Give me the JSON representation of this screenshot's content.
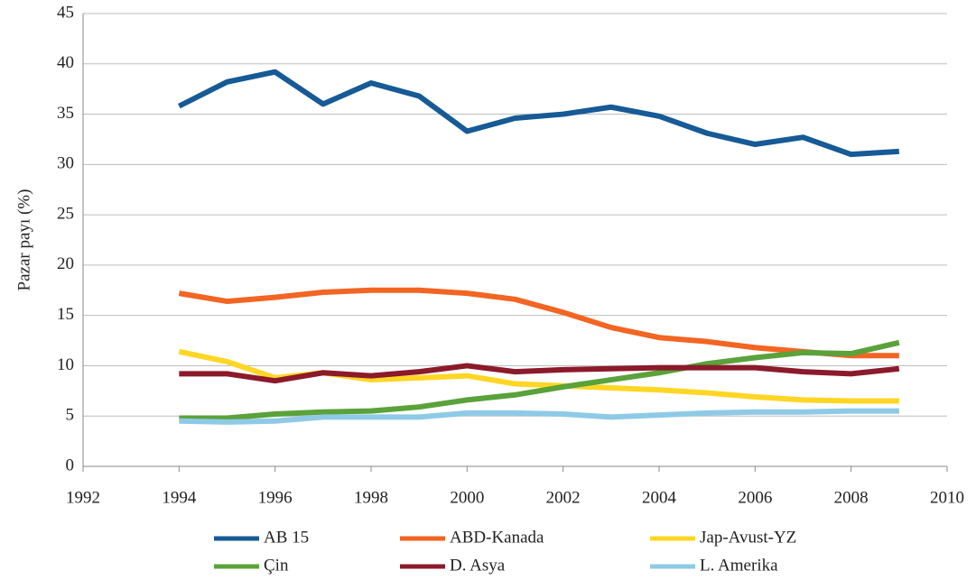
{
  "chart_data": {
    "type": "line",
    "y_label": "Pazar payı (%)",
    "x": [
      1994,
      1995,
      1996,
      1997,
      1998,
      1999,
      2000,
      2001,
      2002,
      2003,
      2004,
      2005,
      2006,
      2007,
      2008,
      2009
    ],
    "xlim": [
      1992,
      2010
    ],
    "xticks": [
      1992,
      1994,
      1996,
      1998,
      2000,
      2002,
      2004,
      2006,
      2008,
      2010
    ],
    "ylim": [
      0,
      45
    ],
    "yticks": [
      0,
      5,
      10,
      15,
      20,
      25,
      30,
      35,
      40,
      45
    ],
    "grid": true,
    "legend": "bottom",
    "series": [
      {
        "name": "AB 15",
        "color": "#165a96",
        "values": [
          35.8,
          38.2,
          39.2,
          36.0,
          38.1,
          36.8,
          33.3,
          34.6,
          35.0,
          35.7,
          34.8,
          33.1,
          32.0,
          32.7,
          31.0,
          31.3
        ]
      },
      {
        "name": "ABD-Kanada",
        "color": "#f26522",
        "values": [
          17.2,
          16.4,
          16.8,
          17.3,
          17.5,
          17.5,
          17.2,
          16.6,
          15.3,
          13.8,
          12.8,
          12.4,
          11.8,
          11.4,
          11.0,
          11.0
        ]
      },
      {
        "name": "Jap-Avust-YZ",
        "color": "#ffd624",
        "values": [
          11.4,
          10.4,
          8.8,
          9.3,
          8.6,
          8.8,
          9.0,
          8.2,
          8.0,
          7.8,
          7.6,
          7.3,
          6.9,
          6.6,
          6.5,
          6.5
        ]
      },
      {
        "name": "Çin",
        "color": "#5aa23a",
        "values": [
          4.8,
          4.8,
          5.2,
          5.4,
          5.5,
          5.9,
          6.6,
          7.1,
          7.9,
          8.6,
          9.3,
          10.2,
          10.8,
          11.3,
          11.2,
          12.3
        ]
      },
      {
        "name": "D. Asya",
        "color": "#8b1a2b",
        "values": [
          9.2,
          9.2,
          8.5,
          9.3,
          9.0,
          9.4,
          10.0,
          9.4,
          9.6,
          9.7,
          9.8,
          9.8,
          9.8,
          9.4,
          9.2,
          9.7
        ]
      },
      {
        "name": "L. Amerika",
        "color": "#8ecae6",
        "values": [
          4.5,
          4.4,
          4.5,
          4.9,
          4.9,
          4.9,
          5.3,
          5.3,
          5.2,
          4.9,
          5.1,
          5.3,
          5.4,
          5.4,
          5.5,
          5.5
        ]
      }
    ]
  }
}
